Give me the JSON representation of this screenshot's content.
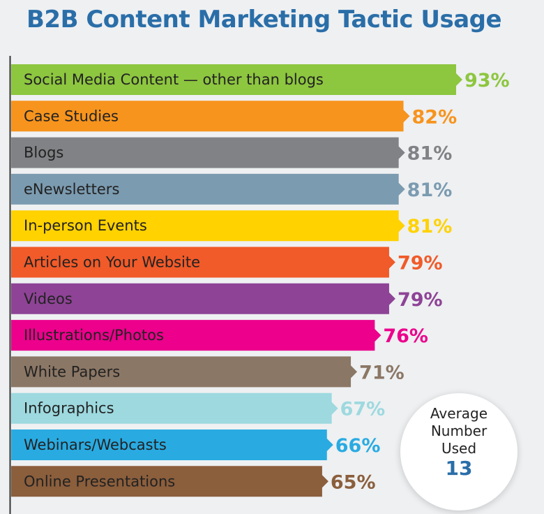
{
  "title": "B2B Content Marketing Tactic Usage",
  "chart_data": {
    "type": "bar",
    "orientation": "horizontal",
    "title": "B2B Content Marketing Tactic Usage",
    "xlabel": "",
    "ylabel": "",
    "unit": "%",
    "categories": [
      "Social Media Content — other than blogs",
      "Case Studies",
      "Blogs",
      "eNewsletters",
      "In-person Events",
      "Articles on Your Website",
      "Videos",
      "Illustrations/Photos",
      "White Papers",
      "Infographics",
      "Webinars/Webcasts",
      "Online Presentations"
    ],
    "values": [
      93,
      82,
      81,
      81,
      81,
      79,
      79,
      76,
      71,
      67,
      66,
      65
    ],
    "value_labels": [
      "93%",
      "82%",
      "81%",
      "81%",
      "81%",
      "79%",
      "79%",
      "76%",
      "71%",
      "67%",
      "66%",
      "65%"
    ],
    "colors": [
      "#8dc63f",
      "#f7941d",
      "#808285",
      "#7b9bb0",
      "#ffd200",
      "#f15a29",
      "#8e4396",
      "#ec008c",
      "#8b7765",
      "#9dd9df",
      "#29abe2",
      "#8b5e3c"
    ],
    "label_colors": [
      "#8dc63f",
      "#f7941d",
      "#808285",
      "#7b9bb0",
      "#ffd200",
      "#f15a29",
      "#8e4396",
      "#ec008c",
      "#8b7765",
      "#9dd9df",
      "#29abe2",
      "#8b5e3c"
    ],
    "xlim": [
      0,
      100
    ],
    "grid": false
  },
  "callout": {
    "caption": "Average Number Used",
    "value": "13"
  }
}
